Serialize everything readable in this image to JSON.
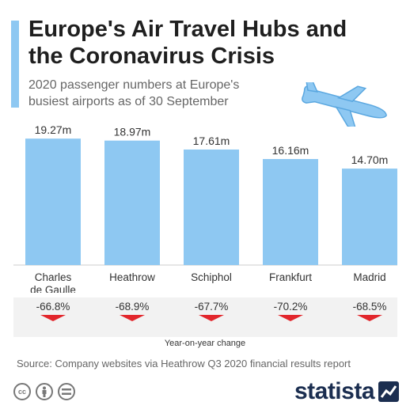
{
  "header": {
    "title": "Europe's Air Travel Hubs and the Coronavirus Crisis",
    "subtitle": "2020 passenger numbers at Europe's busiest airports as of 30 September"
  },
  "colors": {
    "bar": "#8ec8f2",
    "accent": "#8ec8f2",
    "negative": "#e2262c",
    "panel": "#f2f2f2",
    "brand": "#1b2e50"
  },
  "icons": [
    "airplane-icon",
    "cc-icon",
    "by-icon",
    "nd-icon",
    "statista-logo-icon"
  ],
  "chart_data": {
    "type": "bar",
    "categories": [
      "Charles de Gaulle",
      "Heathrow",
      "Schiphol",
      "Frankfurt",
      "Madrid"
    ],
    "values": [
      19.27,
      18.97,
      17.61,
      16.16,
      14.7
    ],
    "value_labels": [
      "19.27m",
      "18.97m",
      "17.61m",
      "16.16m",
      "14.70m"
    ],
    "unit": "m",
    "title": "Europe's Air Travel Hubs and the Coronavirus Crisis",
    "subtitle": "2020 passenger numbers at Europe's busiest airports as of 30 September",
    "xlabel": "",
    "ylabel": "",
    "ylim": [
      0,
      20.5
    ],
    "grid": false,
    "legend": "none",
    "yoy_change_label": "Year-on-year change",
    "yoy_change": [
      -66.8,
      -68.9,
      -67.7,
      -70.2,
      -68.5
    ],
    "yoy_change_labels": [
      "-66.8%",
      "-68.9%",
      "-67.7%",
      "-70.2%",
      "-68.5%"
    ]
  },
  "footer": {
    "source": "Source: Company websites via Heathrow Q3 2020 financial results report",
    "cc_labels": [
      "cc"
    ],
    "brand": "statista"
  }
}
